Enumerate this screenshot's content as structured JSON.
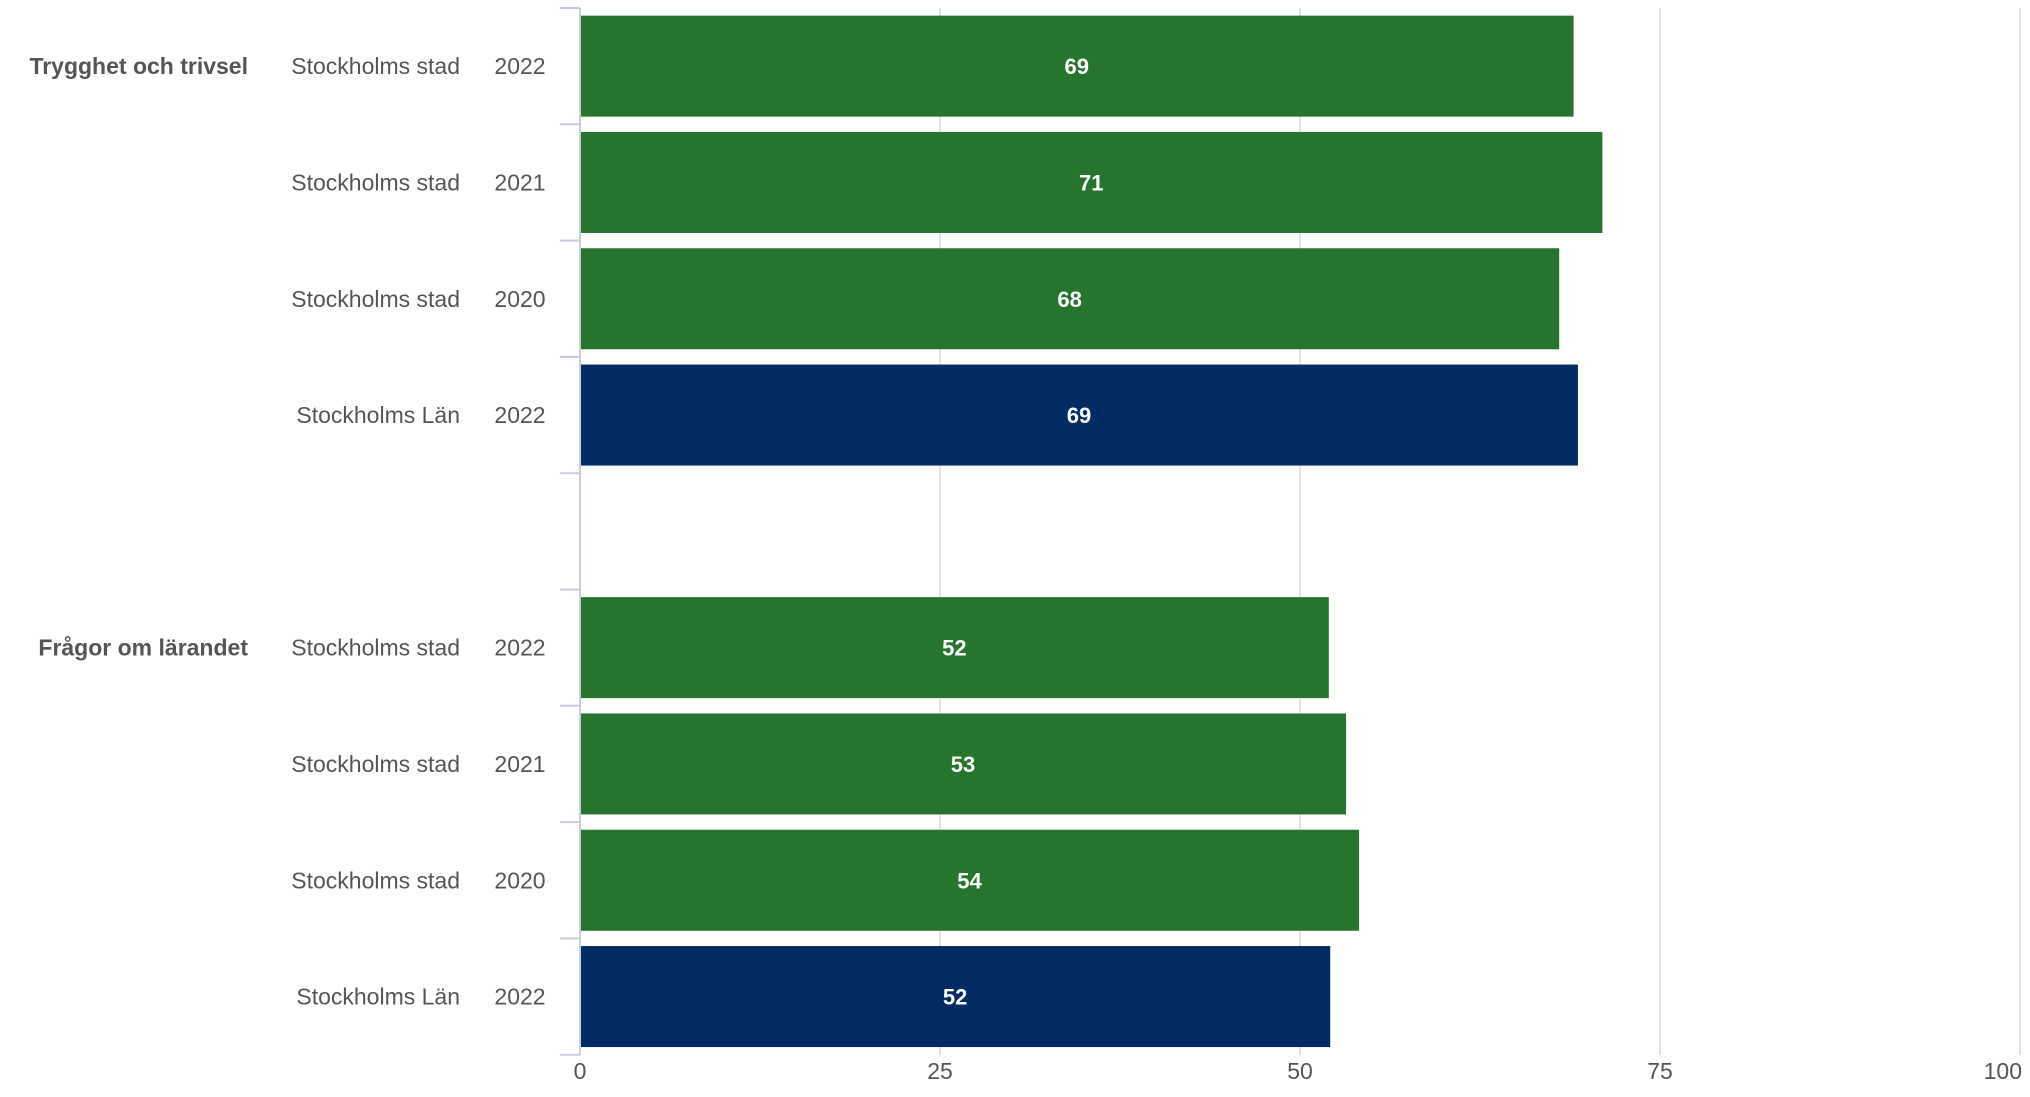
{
  "chart_data": {
    "type": "bar",
    "orientation": "horizontal",
    "xlim": [
      0,
      100
    ],
    "x_ticks": [
      "0",
      "25",
      "50",
      "75",
      "100"
    ],
    "grid": true,
    "colors": {
      "Stockholms stad": "#27742e",
      "Stockholms Län": "#002c63"
    },
    "groups": [
      {
        "label": "Trygghet och trivsel",
        "rows": [
          {
            "entity": "Stockholms stad",
            "year": "2022",
            "value": 69,
            "value_label": "69"
          },
          {
            "entity": "Stockholms stad",
            "year": "2021",
            "value": 71,
            "value_label": "71"
          },
          {
            "entity": "Stockholms stad",
            "year": "2020",
            "value": 68,
            "value_label": "68"
          },
          {
            "entity": "Stockholms Län",
            "year": "2022",
            "value": 69.3,
            "value_label": "69"
          }
        ]
      },
      {
        "label": "Frågor om lärandet",
        "rows": [
          {
            "entity": "Stockholms stad",
            "year": "2022",
            "value": 52,
            "value_label": "52"
          },
          {
            "entity": "Stockholms stad",
            "year": "2021",
            "value": 53.2,
            "value_label": "53"
          },
          {
            "entity": "Stockholms stad",
            "year": "2020",
            "value": 54.1,
            "value_label": "54"
          },
          {
            "entity": "Stockholms Län",
            "year": "2022",
            "value": 52.1,
            "value_label": "52"
          }
        ]
      }
    ]
  }
}
